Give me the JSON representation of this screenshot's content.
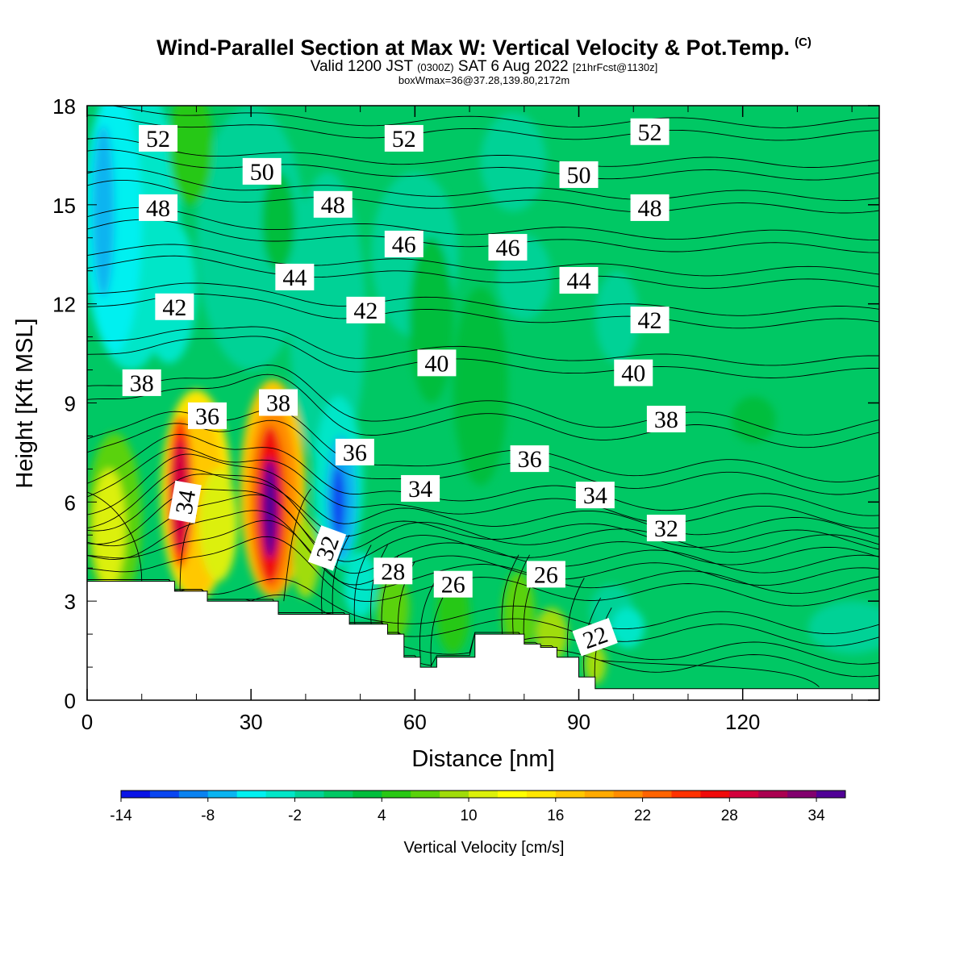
{
  "header": {
    "title": "Wind-Parallel Section at Max W: Vertical Velocity & Pot.Temp.",
    "copyright": "(C)",
    "valid_prefix": "Valid 1200 JST",
    "valid_utc": "(0300Z)",
    "valid_date": "SAT 6 Aug 2022",
    "forecast": "[21hrFcst@1130z]",
    "box_max": "boxWmax=36@37.28,139.80,2172m"
  },
  "chart_data": {
    "type": "heatmap",
    "xlabel": "Distance [nm]",
    "ylabel": "Height [Kft MSL]",
    "xlim": [
      0,
      145
    ],
    "ylim": [
      0,
      18
    ],
    "x_ticks": [
      0,
      30,
      60,
      90,
      120
    ],
    "y_ticks": [
      0,
      3,
      6,
      9,
      12,
      15,
      18
    ],
    "colorbar": {
      "label": "Vertical Velocity [cm/s]",
      "min": -14,
      "max": 36,
      "step": 2,
      "tick_values": [
        -14,
        -8,
        -2,
        4,
        10,
        16,
        22,
        28,
        34
      ],
      "tick_labels": [
        "-14",
        "-8",
        "-2",
        "4",
        "10",
        "16",
        "22",
        "28",
        "34"
      ],
      "colors": [
        "#0a14e6",
        "#0a46f0",
        "#0a82f0",
        "#0ab4f0",
        "#00f0f0",
        "#00e6c8",
        "#00d296",
        "#00c864",
        "#00be3c",
        "#28c814",
        "#5ad20a",
        "#a0dc0a",
        "#dcf00a",
        "#ffff00",
        "#ffe600",
        "#ffc800",
        "#ffaa00",
        "#ff8c00",
        "#ff6400",
        "#ff3200",
        "#f00a0a",
        "#d2003c",
        "#aa0050",
        "#82006e",
        "#500096"
      ]
    },
    "vertical_velocity_features": [
      {
        "x": 3,
        "y": 14.8,
        "value": -8
      },
      {
        "x": 14,
        "y": 12.5,
        "value": -4
      },
      {
        "x": 17,
        "y": 6.2,
        "value": 28
      },
      {
        "x": 21,
        "y": 5.5,
        "value": 12
      },
      {
        "x": 33.5,
        "y": 5.9,
        "value": 34
      },
      {
        "x": 46,
        "y": 6.0,
        "value": -10
      },
      {
        "x": 78,
        "y": 16.5,
        "value": -2
      },
      {
        "x": 97,
        "y": 11.5,
        "value": -2
      }
    ],
    "potential_temperature_contours": {
      "levels": [
        22,
        24,
        26,
        28,
        30,
        32,
        34,
        36,
        38,
        40,
        42,
        44,
        46,
        48,
        50,
        52
      ],
      "labels": [
        {
          "text": "52",
          "x": 13,
          "y": 17.0
        },
        {
          "text": "52",
          "x": 58,
          "y": 17.0
        },
        {
          "text": "52",
          "x": 103,
          "y": 17.2
        },
        {
          "text": "50",
          "x": 32,
          "y": 16.0
        },
        {
          "text": "50",
          "x": 90,
          "y": 15.9
        },
        {
          "text": "48",
          "x": 13,
          "y": 14.9
        },
        {
          "text": "48",
          "x": 45,
          "y": 15.0
        },
        {
          "text": "48",
          "x": 103,
          "y": 14.9
        },
        {
          "text": "46",
          "x": 58,
          "y": 13.8
        },
        {
          "text": "46",
          "x": 77,
          "y": 13.7
        },
        {
          "text": "44",
          "x": 38,
          "y": 12.8
        },
        {
          "text": "44",
          "x": 90,
          "y": 12.7
        },
        {
          "text": "42",
          "x": 16,
          "y": 11.9
        },
        {
          "text": "42",
          "x": 51,
          "y": 11.8
        },
        {
          "text": "42",
          "x": 103,
          "y": 11.5
        },
        {
          "text": "40",
          "x": 64,
          "y": 10.2
        },
        {
          "text": "40",
          "x": 100,
          "y": 9.9
        },
        {
          "text": "38",
          "x": 10,
          "y": 9.6
        },
        {
          "text": "38",
          "x": 35,
          "y": 9.0
        },
        {
          "text": "38",
          "x": 106,
          "y": 8.5
        },
        {
          "text": "36",
          "x": 22,
          "y": 8.6
        },
        {
          "text": "36",
          "x": 49,
          "y": 7.5
        },
        {
          "text": "36",
          "x": 81,
          "y": 7.3
        },
        {
          "text": "34",
          "x": 18,
          "y": 6.0
        },
        {
          "text": "34",
          "x": 61,
          "y": 6.4
        },
        {
          "text": "34",
          "x": 93,
          "y": 6.2
        },
        {
          "text": "32",
          "x": 44,
          "y": 4.6
        },
        {
          "text": "32",
          "x": 106,
          "y": 5.2
        },
        {
          "text": "28",
          "x": 56,
          "y": 3.9
        },
        {
          "text": "26",
          "x": 67,
          "y": 3.5
        },
        {
          "text": "26",
          "x": 84,
          "y": 3.8
        },
        {
          "text": "22",
          "x": 93,
          "y": 1.9
        }
      ]
    },
    "terrain": [
      [
        0,
        3.6
      ],
      [
        16,
        3.6
      ],
      [
        16,
        3.3
      ],
      [
        22,
        3.3
      ],
      [
        22,
        3.0
      ],
      [
        35,
        3.0
      ],
      [
        35,
        2.6
      ],
      [
        48,
        2.6
      ],
      [
        48,
        2.3
      ],
      [
        55,
        2.3
      ],
      [
        55,
        2.0
      ],
      [
        58,
        2.0
      ],
      [
        58,
        1.3
      ],
      [
        61,
        1.3
      ],
      [
        61,
        1.0
      ],
      [
        64,
        1.0
      ],
      [
        64,
        1.3
      ],
      [
        71,
        1.3
      ],
      [
        71,
        2.0
      ],
      [
        80,
        2.0
      ],
      [
        80,
        1.7
      ],
      [
        83,
        1.7
      ],
      [
        83,
        1.6
      ],
      [
        86,
        1.6
      ],
      [
        86,
        1.3
      ],
      [
        90,
        1.3
      ],
      [
        90,
        0.7
      ],
      [
        93,
        0.7
      ],
      [
        93,
        0.35
      ],
      [
        145,
        0.35
      ]
    ]
  }
}
